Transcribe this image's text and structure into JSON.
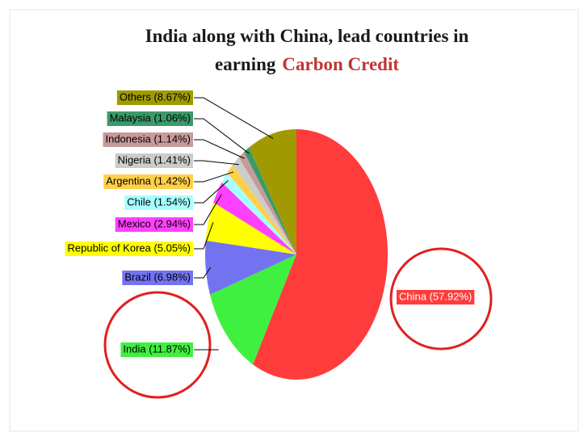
{
  "chart_data": {
    "type": "pie",
    "title_line1": "India along with China, lead countries in",
    "title_line2": "earning",
    "title_highlight": "Carbon Credit",
    "values": [
      57.92,
      11.87,
      6.98,
      5.05,
      2.94,
      1.54,
      1.42,
      1.41,
      1.14,
      1.06,
      8.67
    ],
    "value_labels": [
      "China (57.92%)",
      "India (11.87%)",
      "Brazil (6.98%)",
      "Republic of Korea (5.05%)",
      "Mexico (2.94%)",
      "Chile (1.54%)",
      "Argentina (1.42%)",
      "Nigeria (1.41%)",
      "Indonesia (1.14%)",
      "Malaysia (1.06%)",
      "Others (8.67%)"
    ],
    "colors": [
      "#ff3c3c",
      "#40f040",
      "#7373f2",
      "#ffff00",
      "#ff40ff",
      "#a8ffff",
      "#ffd048",
      "#cccccc",
      "#c89a9a",
      "#3c9a6a",
      "#a09a00"
    ]
  }
}
